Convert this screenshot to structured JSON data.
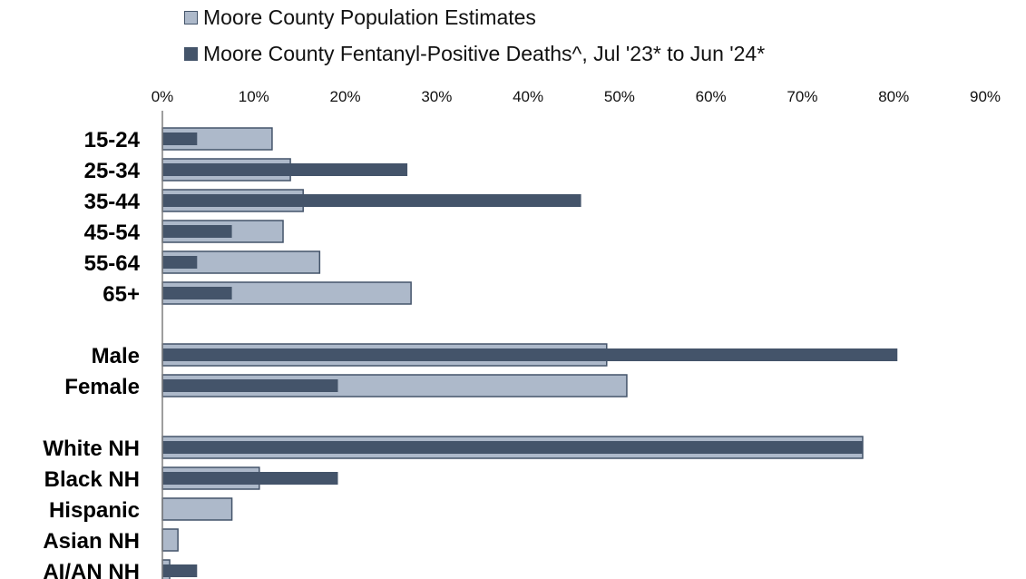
{
  "chart_data": {
    "type": "bar",
    "orientation": "horizontal",
    "groups": [
      [
        "15-24",
        "25-34",
        "35-44",
        "45-54",
        "55-64",
        "65+"
      ],
      [
        "Male",
        "Female"
      ],
      [
        "White NH",
        "Black NH",
        "Hispanic",
        "Asian NH",
        "AI/AN NH"
      ]
    ],
    "categories": [
      "15-24",
      "25-34",
      "35-44",
      "45-54",
      "55-64",
      "65+",
      "Male",
      "Female",
      "White NH",
      "Black NH",
      "Hispanic",
      "Asian NH",
      "AI/AN NH"
    ],
    "series": [
      {
        "name": "Moore County Population Estimates",
        "color": "#adb9ca",
        "values": [
          12,
          14,
          15.4,
          13.2,
          17.2,
          27.2,
          48.6,
          50.8,
          76.6,
          10.6,
          7.6,
          1.7,
          0.8
        ]
      },
      {
        "name": "Moore County Fentanyl-Positive Deaths^, Jul '23* to Jun '24*",
        "color": "#44546a",
        "values": [
          3.8,
          26.8,
          45.8,
          7.6,
          3.8,
          7.6,
          80.4,
          19.2,
          76.6,
          19.2,
          0,
          0,
          3.8
        ]
      }
    ],
    "xlim": [
      0,
      90
    ],
    "xticks": [
      0,
      10,
      20,
      30,
      40,
      50,
      60,
      70,
      80,
      90
    ],
    "xtick_labels": [
      "0%",
      "10%",
      "20%",
      "30%",
      "40%",
      "50%",
      "60%",
      "70%",
      "80%",
      "90%"
    ],
    "legend_position": "top"
  }
}
